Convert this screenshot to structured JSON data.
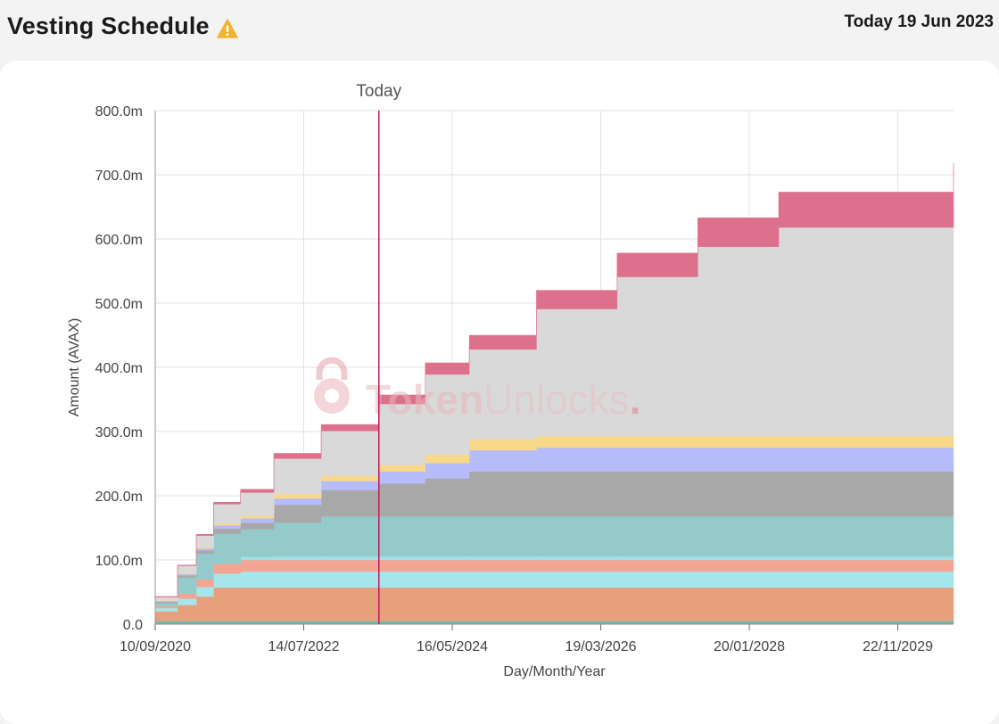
{
  "header": {
    "title": "Vesting Schedule",
    "warning_icon": "warning-triangle-icon",
    "today_label": "Today 19 Jun 2023"
  },
  "watermark": {
    "brand_strong": "Token",
    "brand_light": "Unlocks",
    "brand_dot": ".",
    "icon": "lock-icon"
  },
  "chart_data": {
    "type": "area",
    "stacked": true,
    "xlabel": "Day/Month/Year",
    "ylabel": "Amount (AVAX)",
    "ylim": [
      0,
      800
    ],
    "y_unit": "m",
    "y_ticks": [
      "0.0",
      "100.0m",
      "200.0m",
      "300.0m",
      "400.0m",
      "500.0m",
      "600.0m",
      "700.0m",
      "800.0m"
    ],
    "y_tick_values": [
      0,
      100,
      200,
      300,
      400,
      500,
      600,
      700,
      800
    ],
    "xlim": [
      "2020-09-10",
      "2030-08-01"
    ],
    "x_ticks": [
      {
        "label": "10/09/2020",
        "date": "2020-09-10"
      },
      {
        "label": "14/07/2022",
        "date": "2022-07-14"
      },
      {
        "label": "16/05/2024",
        "date": "2024-05-16"
      },
      {
        "label": "19/03/2026",
        "date": "2026-03-19"
      },
      {
        "label": "20/01/2028",
        "date": "2028-01-20"
      },
      {
        "label": "22/11/2029",
        "date": "2029-11-22"
      }
    ],
    "today_marker": {
      "label": "Today",
      "date": "2023-06-19",
      "color": "#c2185b"
    },
    "grid": true,
    "series": [
      {
        "color": "#7bb8ad",
        "values": [
          5,
          5,
          5,
          5,
          5,
          5,
          5,
          5,
          5,
          5,
          5,
          5,
          5,
          5,
          5
        ]
      },
      {
        "color": "#e6a07c",
        "values": [
          15,
          25,
          38,
          52,
          52,
          52,
          52,
          52,
          52,
          52,
          52,
          52,
          52,
          52,
          52
        ]
      },
      {
        "color": "#a5e6ec",
        "values": [
          5,
          10,
          15,
          22,
          25,
          25,
          25,
          25,
          25,
          25,
          25,
          25,
          25,
          25,
          25
        ]
      },
      {
        "color": "#f4a493",
        "values": [
          3,
          8,
          12,
          15,
          18,
          18,
          18,
          18,
          18,
          18,
          18,
          18,
          18,
          18,
          18
        ]
      },
      {
        "color": "#9fe0e6",
        "values": [
          0,
          0,
          0,
          0,
          5,
          6,
          6,
          6,
          6,
          6,
          6,
          6,
          6,
          6,
          6
        ]
      },
      {
        "color": "#95caca",
        "values": [
          5,
          25,
          40,
          47,
          43,
          52,
          62,
          62,
          62,
          62,
          62,
          62,
          62,
          62,
          62
        ]
      },
      {
        "color": "#a8a8a8",
        "values": [
          2,
          3,
          5,
          8,
          10,
          28,
          41,
          51,
          59,
          70,
          70,
          70,
          70,
          70,
          70
        ]
      },
      {
        "color": "#b6bcfa",
        "values": [
          1,
          2,
          3,
          5,
          7,
          10,
          14,
          19,
          24,
          33,
          37,
          37,
          37,
          37,
          37
        ]
      },
      {
        "color": "#f8d989",
        "values": [
          1,
          1,
          2,
          3,
          4,
          7,
          8,
          10,
          13,
          17,
          18,
          18,
          18,
          18,
          18
        ]
      },
      {
        "color": "#d9d9d9",
        "values": [
          5,
          12,
          18,
          30,
          36,
          55,
          70,
          95,
          125,
          140,
          198,
          248,
          295,
          325,
          360
        ]
      },
      {
        "color": "#dd708c",
        "values": [
          1,
          1,
          2,
          3,
          5,
          8,
          10,
          14,
          18,
          22,
          29,
          37,
          45,
          55,
          65
        ]
      }
    ],
    "x_dates": [
      "2020-09-10",
      "2020-12-20",
      "2021-03-15",
      "2021-06-01",
      "2021-10-01",
      "2022-03-01",
      "2022-10-01",
      "2023-06-19",
      "2024-01-15",
      "2024-08-01",
      "2025-06-01",
      "2026-06-01",
      "2027-06-01",
      "2028-06-01",
      "2030-08-01"
    ]
  }
}
